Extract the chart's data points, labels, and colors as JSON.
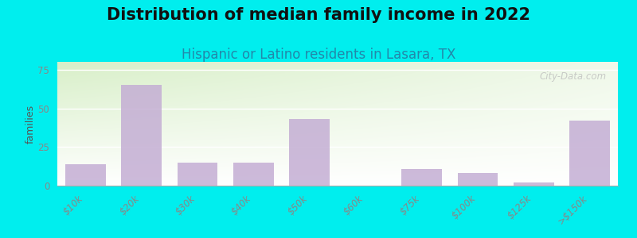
{
  "title": "Distribution of median family income in 2022",
  "subtitle": "Hispanic or Latino residents in Lasara, TX",
  "categories": [
    "$10k",
    "$20k",
    "$30k",
    "$40k",
    "$50k",
    "$60k",
    "$75k",
    "$100k",
    "$125k",
    ">$150k"
  ],
  "values": [
    14,
    65,
    15,
    15,
    43,
    0,
    11,
    8,
    2,
    42
  ],
  "bar_color": "#c4aed4",
  "bg_color": "#00eeee",
  "plot_bg_top_left": "#d8efc8",
  "plot_bg_bottom_right": "#f8f8ff",
  "ylabel": "families",
  "ylim": [
    0,
    80
  ],
  "yticks": [
    0,
    25,
    50,
    75
  ],
  "title_fontsize": 15,
  "subtitle_fontsize": 12,
  "title_color": "#111111",
  "subtitle_color": "#2288aa",
  "watermark": "City-Data.com",
  "bar_width": 0.72,
  "tick_label_color": "#888888",
  "tick_label_size": 8.5,
  "ylabel_size": 9,
  "ylabel_color": "#555555"
}
